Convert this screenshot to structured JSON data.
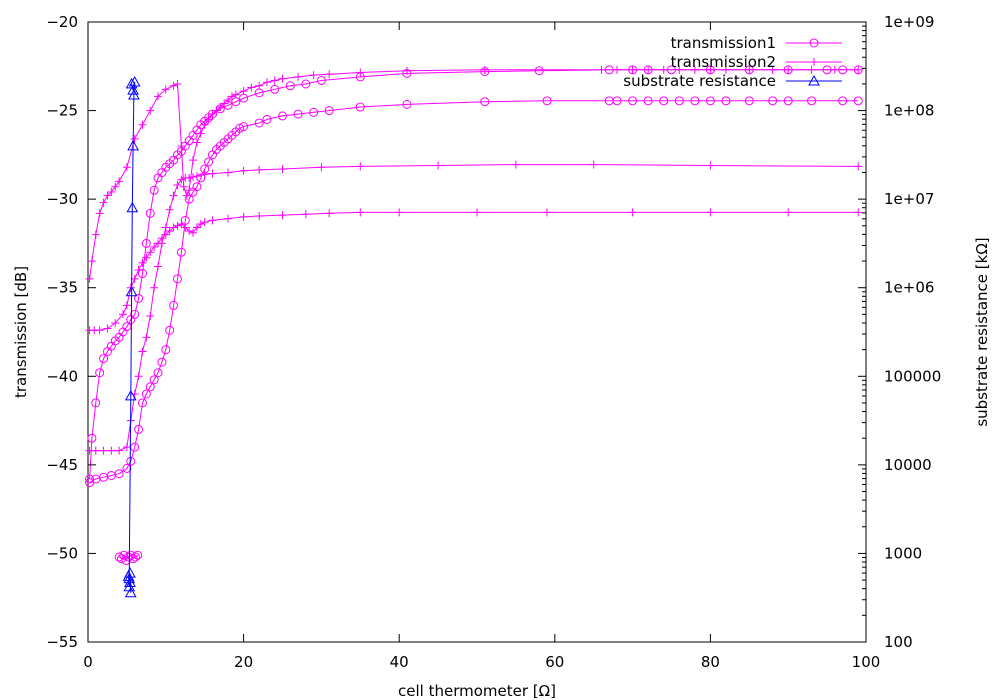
{
  "chart_data": {
    "type": "scatter",
    "title": "",
    "xlabel": "cell thermometer [Ω]",
    "ylabel": "transmission [dB]",
    "y2label": "substrate resistance [kΩ]",
    "xlim": [
      0,
      100
    ],
    "ylim": [
      -55,
      -20
    ],
    "y2lim": [
      100,
      1000000000
    ],
    "y2scale": "log",
    "grid": false,
    "legend_position": "top-right",
    "x_ticks": [
      "0",
      "20",
      "40",
      "60",
      "80",
      "100"
    ],
    "y_ticks": [
      "-55",
      "-50",
      "-45",
      "-40",
      "-35",
      "-30",
      "-25",
      "-20"
    ],
    "y2_ticks": [
      "100",
      "1000",
      "10000",
      "100000",
      "1e+06",
      "1e+07",
      "1e+08",
      "1e+09"
    ],
    "colors": {
      "transmission": "#ff00ff",
      "substrate": "#0000ff"
    },
    "series": [
      {
        "name": "transmission1",
        "marker": "circle",
        "axis": "y",
        "curves": [
          {
            "x": [
              0.2,
              0.5,
              1.0,
              1.5,
              2.0,
              2.5,
              3.0,
              3.5,
              4.0,
              4.5,
              5.0,
              5.5,
              6.0,
              6.5,
              7.0,
              7.5,
              8.0,
              8.5,
              9.0,
              9.5,
              10.0,
              10.5,
              11.0,
              11.5,
              12.0,
              12.5,
              13.0,
              13.5,
              14.0,
              14.5,
              15.0,
              15.5,
              16.0,
              17.0,
              18.0,
              19.0,
              20.0,
              22.0,
              24.0,
              26.0,
              28.0,
              30.0,
              35.0,
              41.0,
              51.0,
              58.0,
              67.0,
              70.0,
              72.0,
              75.0,
              80.0,
              85.0,
              90.0,
              95.0,
              97.0,
              99.0
            ],
            "y": [
              -45.8,
              -43.5,
              -41.5,
              -39.8,
              -39.0,
              -38.6,
              -38.3,
              -38.0,
              -37.8,
              -37.5,
              -37.2,
              -36.8,
              -36.5,
              -35.6,
              -34.2,
              -32.5,
              -30.8,
              -29.5,
              -28.8,
              -28.5,
              -28.2,
              -28.0,
              -27.8,
              -27.5,
              -27.3,
              -27.0,
              -26.7,
              -26.4,
              -26.1,
              -25.8,
              -25.6,
              -25.4,
              -25.2,
              -24.9,
              -24.7,
              -24.5,
              -24.3,
              -24.0,
              -23.8,
              -23.6,
              -23.5,
              -23.3,
              -23.1,
              -22.9,
              -22.8,
              -22.75,
              -22.7,
              -22.7,
              -22.7,
              -22.7,
              -22.7,
              -22.7,
              -22.7,
              -22.7,
              -22.7,
              -22.7
            ]
          },
          {
            "x": [
              0.2,
              1.0,
              2.0,
              3.0,
              4.0,
              5.0,
              5.5,
              6.0,
              6.5,
              7.0,
              7.5,
              8.0,
              8.5,
              9.0,
              9.5,
              10.0,
              10.5,
              11.0,
              11.5,
              12.0,
              12.5,
              13.0,
              13.5,
              14.0,
              14.5,
              15.0,
              15.5,
              16.0,
              16.5,
              17.0,
              17.5,
              18.0,
              18.5,
              19.0,
              19.5,
              20.0,
              22.0,
              23.0,
              25.0,
              27.0,
              29.0,
              31.0,
              35.0,
              41.0,
              51.0,
              59.0,
              67.0,
              68.0,
              70.0,
              72.0,
              74.0,
              76.0,
              78.0,
              80.0,
              82.0,
              85.0,
              88.0,
              90.0,
              93.0,
              97.0,
              99.0
            ],
            "y": [
              -46.0,
              -45.8,
              -45.7,
              -45.6,
              -45.5,
              -45.2,
              -44.8,
              -44.0,
              -43.0,
              -41.5,
              -41.0,
              -40.6,
              -40.2,
              -39.8,
              -39.2,
              -38.5,
              -37.4,
              -36.0,
              -34.5,
              -33.0,
              -31.2,
              -30.0,
              -29.6,
              -29.3,
              -28.8,
              -28.3,
              -27.9,
              -27.5,
              -27.2,
              -27.0,
              -26.8,
              -26.6,
              -26.4,
              -26.2,
              -26.0,
              -25.9,
              -25.7,
              -25.5,
              -25.3,
              -25.2,
              -25.1,
              -25.0,
              -24.8,
              -24.65,
              -24.5,
              -24.45,
              -24.45,
              -24.45,
              -24.45,
              -24.45,
              -24.45,
              -24.45,
              -24.45,
              -24.45,
              -24.45,
              -24.45,
              -24.45,
              -24.45,
              -24.45,
              -24.45,
              -24.45
            ]
          },
          {
            "x": [
              4.0,
              4.3,
              4.6,
              4.9,
              5.2,
              5.5,
              5.8,
              6.1,
              6.4
            ],
            "y": [
              -50.2,
              -50.3,
              -50.1,
              -50.4,
              -50.2,
              -50.1,
              -50.3,
              -50.2,
              -50.1
            ]
          }
        ]
      },
      {
        "name": "transmission2",
        "marker": "plus",
        "axis": "y",
        "curves": [
          {
            "x": [
              0.2,
              0.5,
              1.0,
              1.5,
              2.0,
              2.5,
              3.0,
              3.5,
              4.0,
              5.0,
              6.0,
              7.0,
              8.0,
              9.0,
              10.0,
              11.0,
              11.5,
              12.0,
              12.3,
              12.7,
              13.0,
              13.5,
              14.0,
              14.5,
              15.0,
              15.5,
              16.0,
              16.5,
              17.0,
              17.5,
              18.0,
              18.5,
              19.0,
              20.0,
              21.0,
              22.0,
              23.0,
              24.0,
              25.0,
              27.0,
              29.0,
              31.0,
              35.0,
              41.0,
              51.0,
              66.0,
              68.0,
              70.0,
              72.0,
              74.0,
              76.0,
              78.0,
              80.0,
              82.0,
              85.0,
              88.0,
              90.0,
              93.0,
              96.0,
              99.0
            ],
            "y": [
              -34.5,
              -33.5,
              -32.0,
              -30.8,
              -30.2,
              -29.8,
              -29.6,
              -29.3,
              -29.0,
              -28.2,
              -26.6,
              -25.8,
              -25.0,
              -24.2,
              -23.8,
              -23.6,
              -23.5,
              -27.0,
              -29.3,
              -29.8,
              -29.5,
              -27.8,
              -26.8,
              -26.3,
              -25.8,
              -25.5,
              -25.2,
              -25.0,
              -24.8,
              -24.6,
              -24.4,
              -24.2,
              -24.1,
              -23.9,
              -23.7,
              -23.6,
              -23.4,
              -23.3,
              -23.2,
              -23.1,
              -23.0,
              -22.95,
              -22.85,
              -22.75,
              -22.7,
              -22.7,
              -22.7,
              -22.7,
              -22.7,
              -22.7,
              -22.7,
              -22.7,
              -22.7,
              -22.7,
              -22.7,
              -22.7,
              -22.7,
              -22.7,
              -22.7,
              -22.7
            ]
          },
          {
            "x": [
              0.2,
              1.0,
              2.0,
              3.0,
              4.0,
              5.0,
              5.5,
              6.0,
              6.5,
              7.0,
              7.5,
              8.0,
              8.5,
              9.0,
              9.5,
              10.0,
              10.5,
              11.0,
              11.5,
              12.0,
              12.5,
              13.0,
              13.5,
              14.0,
              15.0,
              16.0,
              18.0,
              20.0,
              22.0,
              25.0,
              30.0,
              35.0,
              45.0,
              55.0,
              65.0,
              80.0,
              99.0
            ],
            "y": [
              -44.2,
              -44.2,
              -44.2,
              -44.2,
              -44.2,
              -44.0,
              -42.5,
              -41.0,
              -40.0,
              -38.6,
              -37.8,
              -36.6,
              -35.0,
              -33.8,
              -32.5,
              -31.6,
              -30.6,
              -29.8,
              -29.2,
              -28.9,
              -28.8,
              -28.8,
              -28.75,
              -28.7,
              -28.6,
              -28.55,
              -28.5,
              -28.4,
              -28.35,
              -28.3,
              -28.2,
              -28.15,
              -28.1,
              -28.05,
              -28.05,
              -28.1,
              -28.15
            ]
          },
          {
            "x": [
              0.2,
              0.8,
              1.5,
              2.5,
              3.5,
              4.5,
              5.0,
              5.5,
              6.0,
              6.5,
              7.0,
              7.5,
              8.0,
              8.5,
              9.0,
              9.5,
              10.0,
              10.5,
              11.0,
              11.5,
              12.0,
              12.5,
              13.0,
              13.5,
              14.0,
              14.5,
              15.0,
              16.0,
              18.0,
              20.0,
              22.0,
              25.0,
              28.0,
              31.0,
              35.0,
              40.0,
              50.0,
              59.0,
              70.0,
              80.0,
              90.0,
              99.0
            ],
            "y": [
              -37.4,
              -37.4,
              -37.4,
              -37.3,
              -37.0,
              -36.5,
              -36.0,
              -35.0,
              -34.5,
              -34.0,
              -33.6,
              -33.3,
              -33.0,
              -32.7,
              -32.5,
              -32.2,
              -32.0,
              -31.8,
              -31.6,
              -31.5,
              -31.4,
              -31.6,
              -31.8,
              -31.9,
              -31.6,
              -31.4,
              -31.3,
              -31.2,
              -31.1,
              -31.0,
              -30.95,
              -30.9,
              -30.85,
              -30.8,
              -30.75,
              -30.75,
              -30.75,
              -30.75,
              -30.75,
              -30.75,
              -30.75,
              -30.75
            ]
          }
        ]
      },
      {
        "name": "substrate resistance",
        "marker": "triangle",
        "axis": "y2",
        "curves": [
          {
            "x": [
              5.2,
              5.3,
              5.4,
              5.5,
              5.4,
              5.3,
              5.5,
              5.6,
              5.7,
              5.8,
              5.9,
              6.0,
              5.8,
              5.6
            ],
            "y": [
              550,
              420,
              600,
              360,
              470,
              520,
              60000,
              900000,
              8000000,
              40000000,
              150000000,
              210000000,
              170000000,
              200000000
            ]
          }
        ]
      }
    ]
  }
}
